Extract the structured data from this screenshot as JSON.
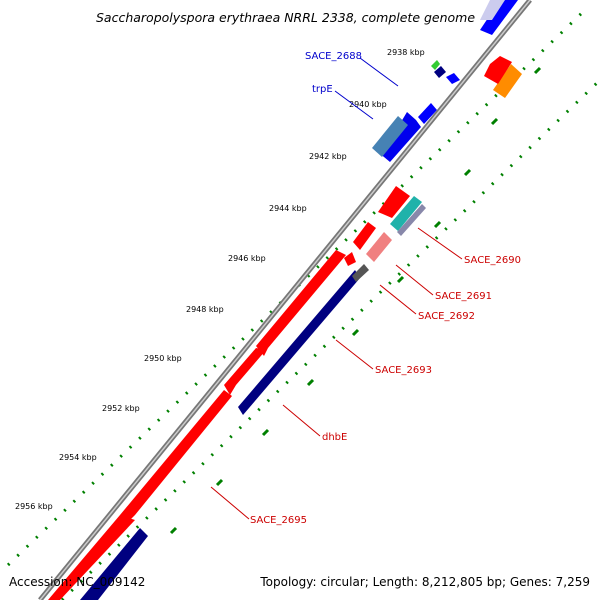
{
  "title": "Saccharopolyspora erythraea NRRL 2338, complete genome",
  "footer": {
    "accession": "Accession: NC_009142",
    "topology": "Topology: circular; Length: 8,212,805 bp; Genes: 7,259"
  },
  "ticks": [
    "2938 kbp",
    "2940 kbp",
    "2942 kbp",
    "2944 kbp",
    "2946 kbp",
    "2948 kbp",
    "2950 kbp",
    "2952 kbp",
    "2954 kbp",
    "2956 kbp"
  ],
  "genes": [
    {
      "label": "SACE_2688",
      "color": "#0000cc"
    },
    {
      "label": "trpE",
      "color": "#0000cc"
    },
    {
      "label": "SACE_2690",
      "color": "#cc0000"
    },
    {
      "label": "SACE_2691",
      "color": "#cc0000"
    },
    {
      "label": "SACE_2692",
      "color": "#cc0000"
    },
    {
      "label": "SACE_2693",
      "color": "#cc0000"
    },
    {
      "label": "dhbE",
      "color": "#cc0000"
    },
    {
      "label": "SACE_2695",
      "color": "#cc0000"
    }
  ],
  "colors": {
    "forward_strand": "#ff0000",
    "reverse_strand": "#000080",
    "blue_gene": "#0000ff",
    "steelblue_gene": "#4682b4",
    "tick_dots": "#008000",
    "orange_gene": "#ff8c00",
    "green_gene": "#33cc33",
    "pink_gene": "#f08080",
    "teal_gene": "#20b2aa"
  }
}
